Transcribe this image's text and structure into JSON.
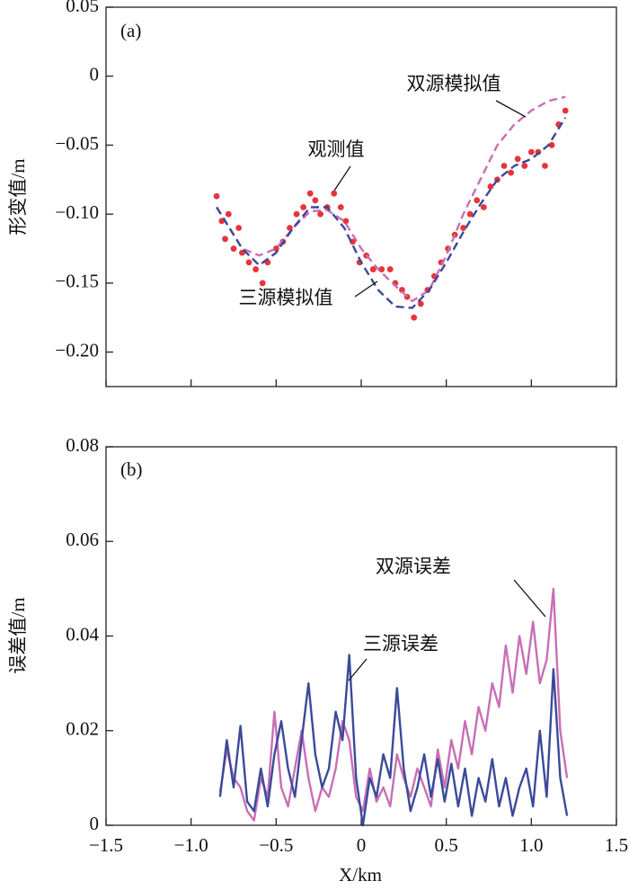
{
  "chart_data": [
    {
      "type": "line",
      "panel_label": "(a)",
      "y_label": "形变值/m",
      "xlim": [
        -1.5,
        1.5
      ],
      "ylim": [
        -0.225,
        0.05
      ],
      "yticks": [
        0.05,
        0,
        {
          "value": -0.05,
          "label": "−0.05"
        },
        {
          "value": -0.1,
          "label": "−0.10"
        },
        {
          "value": -0.15,
          "label": "−0.15"
        },
        {
          "value": -0.2,
          "label": "−0.20"
        }
      ],
      "series": [
        {
          "name": "观测值",
          "color": "#e8333a",
          "style": "dots",
          "x": [
            -0.85,
            -0.82,
            -0.8,
            -0.78,
            -0.75,
            -0.72,
            -0.7,
            -0.66,
            -0.62,
            -0.58,
            -0.55,
            -0.5,
            -0.46,
            -0.42,
            -0.38,
            -0.34,
            -0.3,
            -0.27,
            -0.24,
            -0.2,
            -0.16,
            -0.12,
            -0.09,
            -0.05,
            -0.01,
            0.03,
            0.07,
            0.12,
            0.17,
            0.2,
            0.24,
            0.27,
            0.31,
            0.35,
            0.39,
            0.43,
            0.47,
            0.51,
            0.55,
            0.6,
            0.64,
            0.68,
            0.72,
            0.76,
            0.8,
            0.84,
            0.88,
            0.92,
            0.96,
            1.0,
            1.04,
            1.08,
            1.12,
            1.16,
            1.2
          ],
          "values": [
            -0.087,
            -0.105,
            -0.118,
            -0.1,
            -0.125,
            -0.11,
            -0.128,
            -0.135,
            -0.14,
            -0.15,
            -0.135,
            -0.125,
            -0.12,
            -0.11,
            -0.1,
            -0.095,
            -0.085,
            -0.09,
            -0.1,
            -0.095,
            -0.085,
            -0.095,
            -0.105,
            -0.12,
            -0.135,
            -0.13,
            -0.14,
            -0.14,
            -0.14,
            -0.15,
            -0.155,
            -0.16,
            -0.175,
            -0.165,
            -0.155,
            -0.145,
            -0.135,
            -0.125,
            -0.115,
            -0.11,
            -0.1,
            -0.09,
            -0.095,
            -0.08,
            -0.075,
            -0.065,
            -0.07,
            -0.06,
            -0.065,
            -0.055,
            -0.055,
            -0.065,
            -0.05,
            -0.035,
            -0.025
          ]
        },
        {
          "name": "双源模拟值",
          "color": "#c86fb4",
          "style": "dashed",
          "x": [
            -0.85,
            -0.7,
            -0.6,
            -0.5,
            -0.4,
            -0.3,
            -0.2,
            -0.1,
            0,
            0.1,
            0.2,
            0.3,
            0.4,
            0.5,
            0.6,
            0.7,
            0.8,
            0.9,
            1.0,
            1.1,
            1.2
          ],
          "values": [
            -0.095,
            -0.125,
            -0.13,
            -0.125,
            -0.11,
            -0.098,
            -0.097,
            -0.105,
            -0.125,
            -0.14,
            -0.152,
            -0.163,
            -0.155,
            -0.13,
            -0.1,
            -0.075,
            -0.05,
            -0.035,
            -0.025,
            -0.018,
            -0.015
          ]
        },
        {
          "name": "三源模拟值",
          "color": "#3a4a9a",
          "style": "dashed",
          "x": [
            -0.85,
            -0.7,
            -0.6,
            -0.5,
            -0.4,
            -0.3,
            -0.2,
            -0.1,
            0,
            0.1,
            0.2,
            0.3,
            0.4,
            0.5,
            0.6,
            0.7,
            0.8,
            0.9,
            1.0,
            1.1,
            1.2
          ],
          "values": [
            -0.095,
            -0.125,
            -0.137,
            -0.128,
            -0.11,
            -0.095,
            -0.095,
            -0.11,
            -0.135,
            -0.155,
            -0.167,
            -0.168,
            -0.155,
            -0.135,
            -0.113,
            -0.093,
            -0.075,
            -0.065,
            -0.06,
            -0.05,
            -0.03
          ]
        }
      ]
    },
    {
      "type": "line",
      "panel_label": "(b)",
      "y_label": "误差值/m",
      "x_label": "X/km",
      "xlim": [
        -1.5,
        1.5
      ],
      "ylim": [
        0,
        0.08
      ],
      "xticks": [
        {
          "value": -1.5,
          "label": "−1.5"
        },
        {
          "value": -1,
          "label": "−1.0"
        },
        {
          "value": -0.5,
          "label": "−0.5"
        },
        0,
        0.5,
        {
          "value": 1,
          "label": "1.0"
        },
        1.5
      ],
      "yticks": [
        0,
        0.02,
        0.04,
        0.06,
        0.08
      ],
      "x": [
        -0.83,
        -0.79,
        -0.75,
        -0.71,
        -0.67,
        -0.63,
        -0.59,
        -0.55,
        -0.51,
        -0.47,
        -0.43,
        -0.39,
        -0.35,
        -0.31,
        -0.27,
        -0.23,
        -0.19,
        -0.15,
        -0.11,
        -0.07,
        -0.03,
        0.01,
        0.05,
        0.09,
        0.13,
        0.17,
        0.21,
        0.25,
        0.29,
        0.33,
        0.37,
        0.41,
        0.45,
        0.49,
        0.53,
        0.57,
        0.61,
        0.65,
        0.69,
        0.73,
        0.77,
        0.81,
        0.85,
        0.89,
        0.93,
        0.97,
        1.01,
        1.05,
        1.09,
        1.13,
        1.17,
        1.21
      ],
      "series": [
        {
          "name": "双源误差",
          "color": "#c86fb4",
          "style": "solid",
          "values": [
            0.007,
            0.016,
            0.01,
            0.008,
            0.003,
            0.001,
            0.01,
            0.006,
            0.024,
            0.008,
            0.004,
            0.012,
            0.02,
            0.01,
            0.003,
            0.008,
            0.006,
            0.012,
            0.022,
            0.018,
            0.006,
            0.003,
            0.012,
            0.005,
            0.008,
            0.004,
            0.015,
            0.01,
            0.006,
            0.012,
            0.008,
            0.004,
            0.016,
            0.008,
            0.018,
            0.012,
            0.022,
            0.015,
            0.025,
            0.02,
            0.03,
            0.025,
            0.038,
            0.028,
            0.04,
            0.032,
            0.043,
            0.03,
            0.035,
            0.05,
            0.02,
            0.01
          ]
        },
        {
          "name": "三源误差",
          "color": "#3a4a9a",
          "style": "solid",
          "values": [
            0.006,
            0.018,
            0.008,
            0.021,
            0.005,
            0.003,
            0.012,
            0.004,
            0.015,
            0.022,
            0.012,
            0.006,
            0.018,
            0.03,
            0.015,
            0.008,
            0.012,
            0.024,
            0.018,
            0.036,
            0.01,
            0.0,
            0.01,
            0.006,
            0.015,
            0.01,
            0.029,
            0.012,
            0.003,
            0.008,
            0.015,
            0.006,
            0.014,
            0.005,
            0.013,
            0.004,
            0.012,
            0.002,
            0.01,
            0.005,
            0.014,
            0.004,
            0.01,
            0.002,
            0.008,
            0.012,
            0.004,
            0.02,
            0.006,
            0.033,
            0.01,
            0.002
          ]
        }
      ]
    }
  ]
}
